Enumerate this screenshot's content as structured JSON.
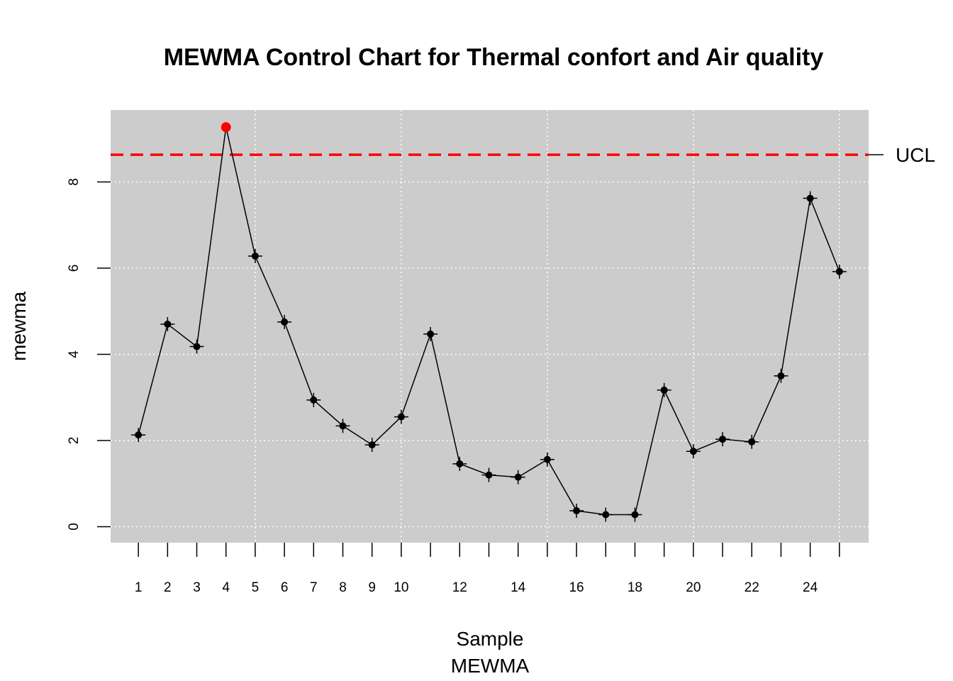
{
  "chart_data": {
    "type": "line",
    "title": "MEWMA Control Chart for Thermal confort and Air quality",
    "xlabel": "Sample",
    "xlabel_sub": "MEWMA",
    "ylabel": "mewma",
    "x": [
      1,
      2,
      3,
      4,
      5,
      6,
      7,
      8,
      9,
      10,
      11,
      12,
      13,
      14,
      15,
      16,
      17,
      18,
      19,
      20,
      21,
      22,
      23,
      24,
      25
    ],
    "values": [
      2.13,
      4.7,
      4.18,
      9.27,
      6.28,
      4.75,
      2.94,
      2.34,
      1.9,
      2.55,
      4.47,
      1.46,
      1.2,
      1.15,
      1.56,
      0.37,
      0.28,
      0.28,
      3.17,
      1.75,
      2.03,
      1.97,
      3.5,
      7.62,
      5.92
    ],
    "x_tick_labels": [
      "1",
      "2",
      "3",
      "4",
      "5",
      "6",
      "7",
      "8",
      "9",
      "10",
      "12",
      "14",
      "16",
      "18",
      "20",
      "22",
      "24"
    ],
    "y_ticks": [
      0,
      2,
      4,
      6,
      8
    ],
    "xlim": [
      0.05,
      26.0
    ],
    "ylim": [
      -0.37,
      9.67
    ],
    "ucl": 8.63,
    "ucl_label": "UCL",
    "out_of_control_points": [
      4
    ],
    "grid": true,
    "colors": {
      "background": "#cccccc",
      "grid": "#ffffff",
      "line": "#000000",
      "point": "#000000",
      "violation": "#ff0000",
      "ucl": "#ff0000"
    }
  }
}
